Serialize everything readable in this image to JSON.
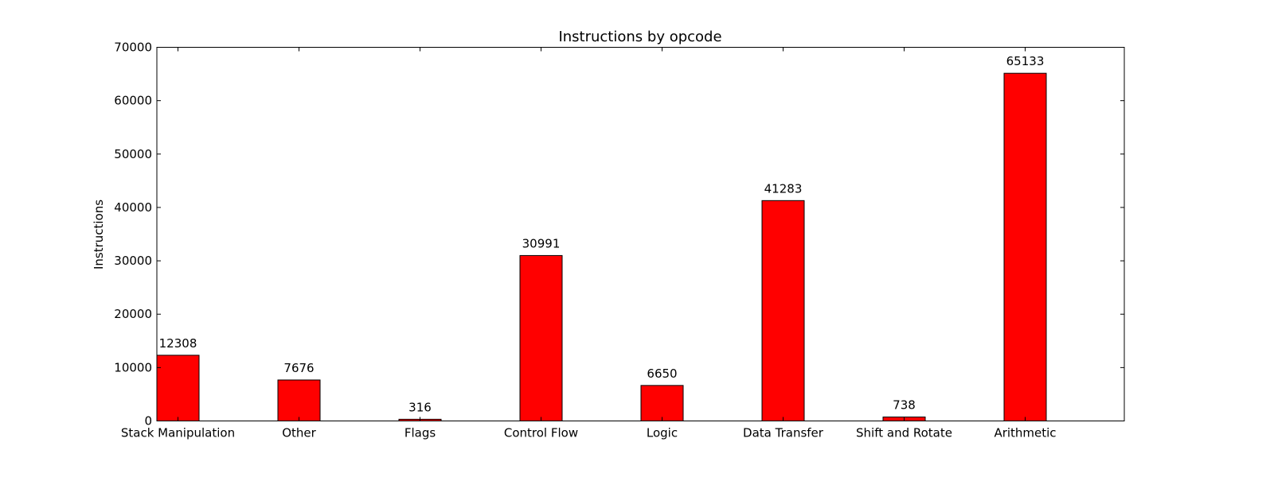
{
  "chart_data": {
    "type": "bar",
    "title": "Instructions by opcode",
    "xlabel": "",
    "ylabel": "Instructions",
    "categories": [
      "Stack Manipulation",
      "Other",
      "Flags",
      "Control Flow",
      "Logic",
      "Data Transfer",
      "Shift and Rotate",
      "Arithmetic"
    ],
    "values": [
      12308,
      7676,
      316,
      30991,
      6650,
      41283,
      738,
      65133
    ],
    "value_labels": [
      "12308",
      "7676",
      "316",
      "30991",
      "6650",
      "41283",
      "738",
      "65133"
    ],
    "ylim": [
      0,
      70000
    ],
    "yticks": [
      0,
      10000,
      20000,
      30000,
      40000,
      50000,
      60000,
      70000
    ],
    "ytick_labels": [
      "0",
      "10000",
      "20000",
      "30000",
      "40000",
      "50000",
      "60000",
      "70000"
    ],
    "bar_color": "#ff0000",
    "edge_color": "#000000",
    "grid": false,
    "legend": "none"
  }
}
